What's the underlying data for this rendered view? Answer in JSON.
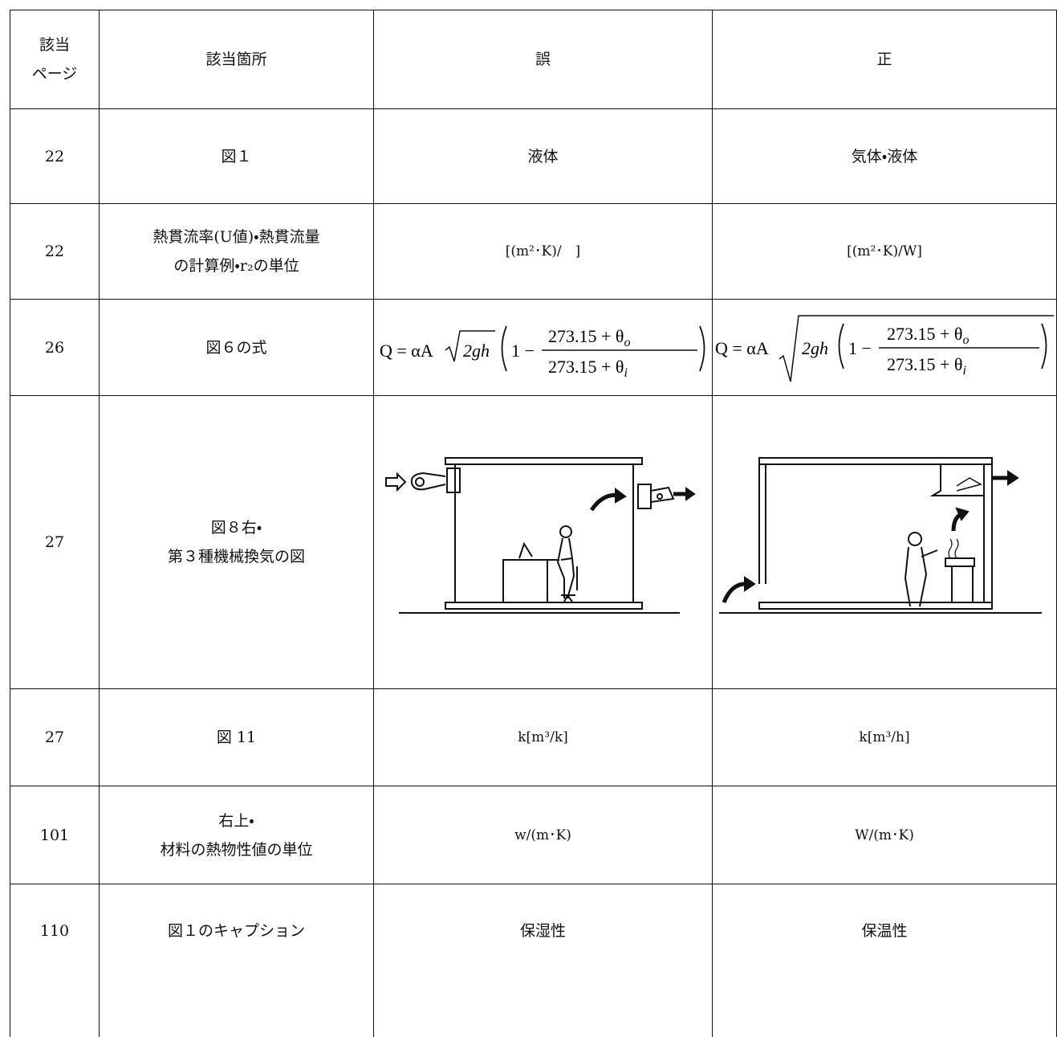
{
  "table": {
    "header": {
      "page": [
        "該当",
        "ページ"
      ],
      "location": "該当箇所",
      "wrong": "誤",
      "right": "正"
    },
    "rows": [
      {
        "page": "22",
        "location": [
          "図１"
        ],
        "wrong": "液体",
        "right": "気体・液体"
      },
      {
        "page": "22",
        "location": [
          "熱貫流率(U値)・熱貫流量",
          "の計算例・r₂の単位"
        ],
        "wrong": "[(m²･K)/　]",
        "right": "[(m²･K)/W]"
      },
      {
        "page": "26",
        "location": [
          "図６の式"
        ],
        "wrong": {
          "lhs": "Q = αA",
          "radicand": "2gh",
          "lead": "1 −",
          "numerator": "273.15 + θ",
          "numerator_sub": "o",
          "denominator": "273.15 + θ",
          "denominator_sub": "i"
        },
        "right": {
          "lhs": "Q = αA",
          "radicand": "2gh",
          "lead": "1 −",
          "numerator": "273.15 + θ",
          "numerator_sub": "o",
          "denominator": "273.15 + θ",
          "denominator_sub": "i"
        }
      },
      {
        "page": "27",
        "location": [
          "図８右・",
          "第３種機械換気の図"
        ]
      },
      {
        "page": "27",
        "location": [
          "図 11"
        ],
        "wrong": "k[m³/k]",
        "right": "k[m³/h]"
      },
      {
        "page": "101",
        "location": [
          "右上・",
          "材料の熱物性値の単位"
        ],
        "wrong": "w/(m･K)",
        "right": "W/(m･K)"
      },
      {
        "page": "110",
        "location": [
          "図１のキャプション"
        ],
        "wrong": "保湿性",
        "right": "保温性"
      }
    ]
  }
}
